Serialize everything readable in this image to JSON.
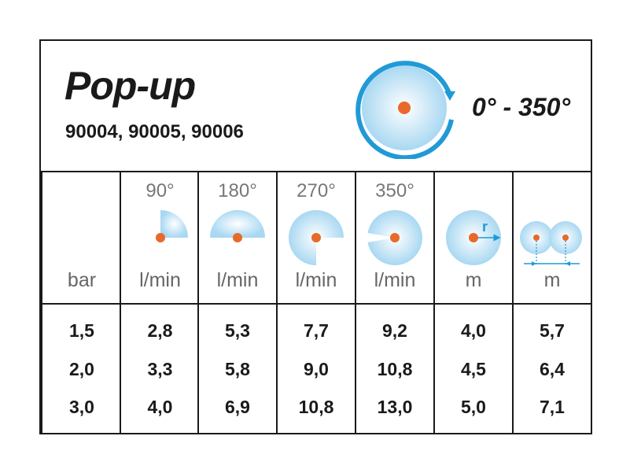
{
  "header": {
    "title": "Pop-up",
    "models": "90004, 90005, 90006",
    "arc_range": "0° - 350°"
  },
  "colors": {
    "spray_blue": "#a9d8f2",
    "arrow_blue": "#1f9ad6",
    "nozzle_orange": "#e8692a"
  },
  "columns": [
    {
      "angle": "",
      "unit": "bar",
      "icon": "",
      "values": [
        "1,5",
        "2,0",
        "3,0"
      ]
    },
    {
      "angle": "90°",
      "unit": "l/min",
      "icon": "quarter-circle-spray-icon",
      "values": [
        "2,8",
        "3,3",
        "4,0"
      ]
    },
    {
      "angle": "180°",
      "unit": "l/min",
      "icon": "half-circle-spray-icon",
      "values": [
        "5,3",
        "5,8",
        "6,9"
      ]
    },
    {
      "angle": "270°",
      "unit": "l/min",
      "icon": "three-quarter-spray-icon",
      "values": [
        "7,7",
        "9,0",
        "10,8"
      ]
    },
    {
      "angle": "350°",
      "unit": "l/min",
      "icon": "full-circle-spray-icon",
      "values": [
        "9,2",
        "10,8",
        "13,0"
      ]
    },
    {
      "angle": "",
      "unit": "m",
      "icon": "radius-icon",
      "icon_label": "r",
      "values": [
        "4,0",
        "4,5",
        "5,0"
      ]
    },
    {
      "angle": "",
      "unit": "m",
      "icon": "spacing-icon",
      "values": [
        "5,7",
        "6,4",
        "7,1"
      ]
    }
  ]
}
